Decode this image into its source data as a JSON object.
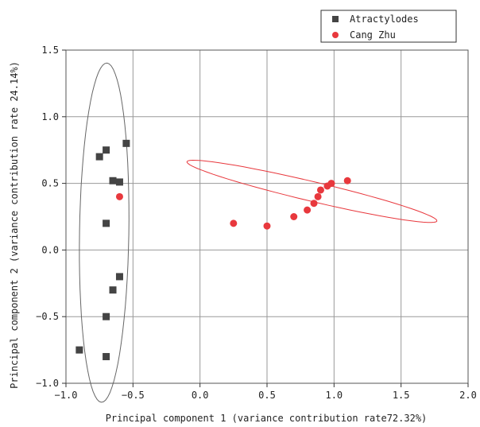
{
  "chart_data": {
    "type": "scatter",
    "title": "",
    "xlabel": "Principal component 1 (variance contribution rate72.32%)",
    "ylabel": "Principal component 2 (variance contribution rate 24.14%)",
    "xlim": [
      -1.0,
      2.0
    ],
    "ylim": [
      -1.0,
      1.5
    ],
    "xticks": [
      -1.0,
      -0.5,
      0.0,
      0.5,
      1.0,
      1.5,
      2.0
    ],
    "yticks": [
      -1.0,
      -0.5,
      0.0,
      0.5,
      1.0,
      1.5
    ],
    "xtick_labels": [
      "−1.0",
      "−0.5",
      "0.0",
      "0.5",
      "1.0",
      "1.5",
      "2.0"
    ],
    "ytick_labels": [
      "−1.0",
      "−0.5",
      "0.0",
      "0.5",
      "1.0",
      "1.5"
    ],
    "grid": true,
    "legend_position": "top-right",
    "series": [
      {
        "name": "Atractylodes",
        "marker": "square",
        "color": "#444444",
        "points": [
          [
            -0.9,
            -0.75
          ],
          [
            -0.7,
            -0.8
          ],
          [
            -0.7,
            -0.5
          ],
          [
            -0.65,
            -0.3
          ],
          [
            -0.6,
            -0.2
          ],
          [
            -0.7,
            0.2
          ],
          [
            -0.65,
            0.52
          ],
          [
            -0.6,
            0.51
          ],
          [
            -0.7,
            0.75
          ],
          [
            -0.75,
            0.7
          ],
          [
            -0.55,
            0.8
          ]
        ],
        "ellipse": [
          [
            -0.715,
            0.13
          ],
          [
            -0.57,
            1.02
          ],
          [
            -0.6,
            -0.78
          ]
        ]
      },
      {
        "name": "Cang Zhu",
        "marker": "circle",
        "color": "#e8383d",
        "points": [
          [
            -0.6,
            0.4
          ],
          [
            0.25,
            0.2
          ],
          [
            0.5,
            0.18
          ],
          [
            0.7,
            0.25
          ],
          [
            0.8,
            0.3
          ],
          [
            0.85,
            0.35
          ],
          [
            0.88,
            0.4
          ],
          [
            0.9,
            0.45
          ],
          [
            0.95,
            0.48
          ],
          [
            0.98,
            0.5
          ],
          [
            1.1,
            0.52
          ]
        ],
        "ellipse": [
          [
            0.835,
            0.44
          ],
          [
            1.66,
            0.28
          ],
          [
            0.4,
            0.61
          ]
        ]
      }
    ]
  }
}
